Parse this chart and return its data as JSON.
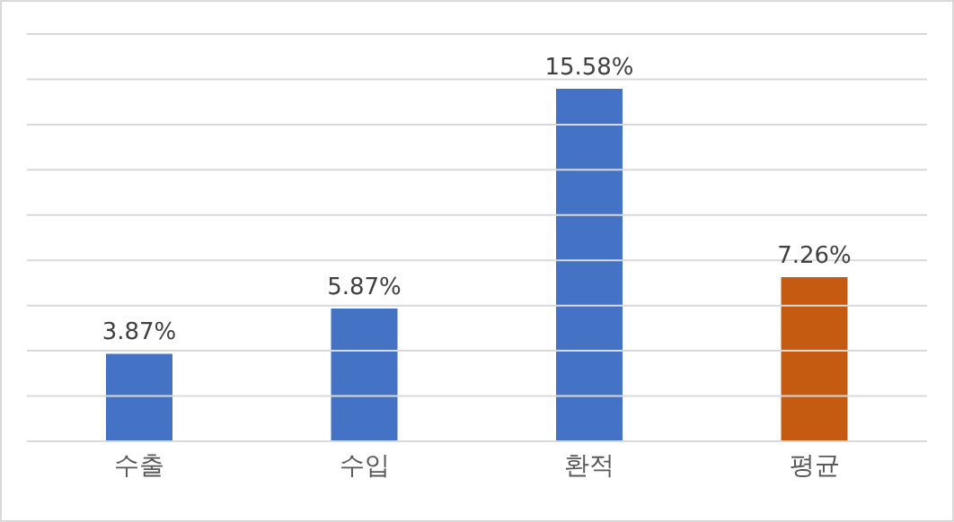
{
  "chart_data": {
    "type": "bar",
    "categories": [
      "수출",
      "수입",
      "환적",
      "평균"
    ],
    "values": [
      3.87,
      5.87,
      15.58,
      7.26
    ],
    "colors": [
      "#4472c4",
      "#4472c4",
      "#4472c4",
      "#c55a11"
    ],
    "value_labels": [
      "3.87%",
      "5.87%",
      "15.58%",
      "7.26%"
    ],
    "ylim": [
      0,
      18
    ],
    "yticks": [
      {
        "value": 0,
        "label": null
      },
      {
        "value": 2,
        "label": null
      },
      {
        "value": 4,
        "label": null
      },
      {
        "value": 6,
        "label": null
      },
      {
        "value": 8,
        "label": null
      },
      {
        "value": 10,
        "label": null
      },
      {
        "value": 12,
        "label": null
      },
      {
        "value": 14,
        "label": null
      },
      {
        "value": 16,
        "label": null
      },
      {
        "value": 18,
        "label": null
      }
    ],
    "grid": "y",
    "tick_labels": "x"
  }
}
